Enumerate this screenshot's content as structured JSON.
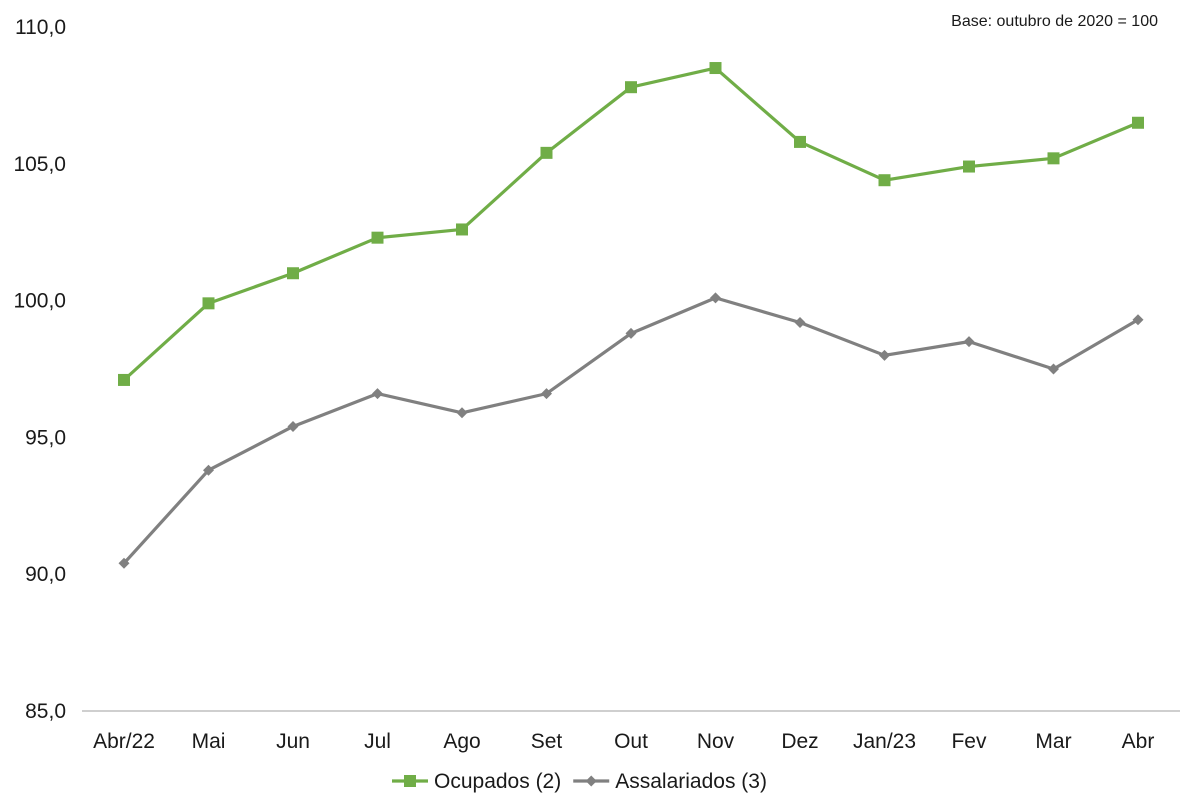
{
  "chart_data": {
    "type": "line",
    "title": "",
    "xlabel": "",
    "ylabel": "",
    "note": "Base: outubro de 2020 = 100",
    "categories": [
      "Abr/22",
      "Mai",
      "Jun",
      "Jul",
      "Ago",
      "Set",
      "Out",
      "Nov",
      "Dez",
      "Jan/23",
      "Fev",
      "Mar",
      "Abr"
    ],
    "ylim": [
      85,
      110
    ],
    "yticks": [
      85,
      90,
      95,
      100,
      105,
      110
    ],
    "ytick_labels": [
      "85,0",
      "90,0",
      "95,0",
      "100,0",
      "105,0",
      "110,0"
    ],
    "grid": false,
    "legend_position": "bottom",
    "series": [
      {
        "name": "Ocupados (2)",
        "color": "#70ad47",
        "marker": "square",
        "values": [
          97.1,
          99.9,
          101.0,
          102.3,
          102.6,
          105.4,
          107.8,
          108.5,
          105.8,
          104.4,
          104.9,
          105.2,
          106.5
        ]
      },
      {
        "name": "Assalariados (3)",
        "color": "#808080",
        "marker": "diamond",
        "values": [
          90.4,
          93.8,
          95.4,
          96.6,
          95.9,
          96.6,
          98.8,
          100.1,
          99.2,
          98.0,
          98.5,
          97.5,
          99.3
        ]
      }
    ]
  }
}
